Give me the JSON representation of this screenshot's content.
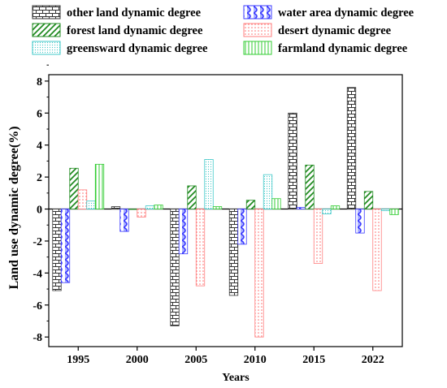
{
  "chart_data": {
    "type": "bar",
    "title": "",
    "xlabel": "Years",
    "ylabel": "Land use dynamic degree(%)",
    "categories": [
      "1995",
      "2000",
      "2005",
      "2010",
      "2015",
      "2022"
    ],
    "ylim": [
      -8.6,
      8.4
    ],
    "yticks": [
      -8,
      -6,
      -4,
      -2,
      0,
      2,
      4,
      6,
      8
    ],
    "grid": false,
    "legend_position": "top",
    "series": [
      {
        "name": "other land dynamic degree",
        "color": "#333333",
        "pattern": "brick",
        "values": [
          -5.1,
          0.15,
          -7.3,
          -5.4,
          6.0,
          7.6
        ]
      },
      {
        "name": "water area dynamic degree",
        "color": "#3a3aff",
        "pattern": "wave",
        "values": [
          -4.6,
          -1.4,
          -2.8,
          -2.2,
          0.1,
          -1.5
        ]
      },
      {
        "name": "forest land dynamic degree",
        "color": "#228b22",
        "pattern": "diagonal",
        "values": [
          2.55,
          0.0,
          1.45,
          0.55,
          2.75,
          1.1
        ]
      },
      {
        "name": "desert dynamic degree",
        "color": "#ff7f7f",
        "pattern": "dots",
        "values": [
          1.2,
          -0.5,
          -4.8,
          -8.0,
          -3.4,
          -5.1
        ]
      },
      {
        "name": "greensward dynamic degree",
        "color": "#40c8c8",
        "pattern": "fine-dots",
        "values": [
          0.5,
          0.2,
          3.1,
          2.15,
          -0.3,
          -0.1
        ]
      },
      {
        "name": "farmland dynamic degree",
        "color": "#33cc33",
        "pattern": "vertical",
        "values": [
          2.8,
          0.25,
          0.15,
          0.65,
          0.2,
          -0.35
        ]
      }
    ]
  }
}
